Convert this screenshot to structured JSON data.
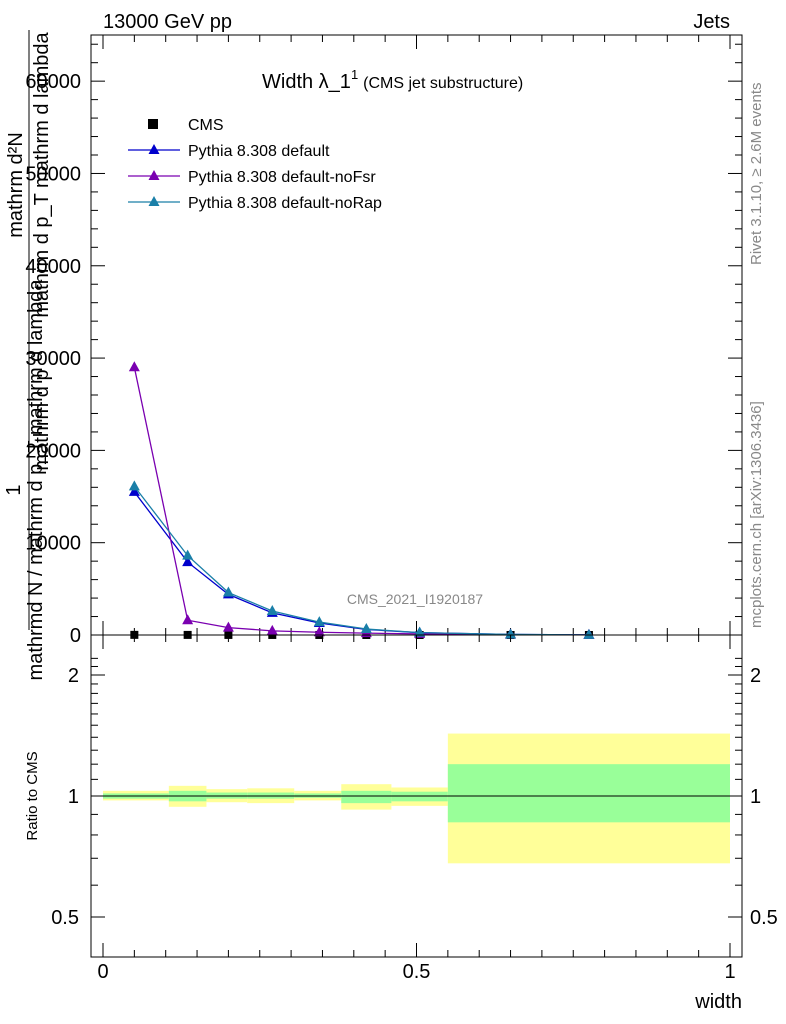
{
  "header": {
    "left": "13000 GeV pp",
    "right": "Jets"
  },
  "side_labels": {
    "rivet": "Rivet 3.1.10, ≥ 2.6M events",
    "mcplots": "mcplots.cern.ch [arXiv:1306.3436]"
  },
  "chart_data": [
    {
      "type": "line",
      "title": "Width λ_1",
      "title_sup": "1",
      "subtitle": "(CMS jet substructure)",
      "watermark": "CMS_2021_I1920187",
      "ylabel_numerator": "1",
      "ylabel_lines": [
        "mathrm d²N",
        "mathrm d p_T mathrm d lambda",
        "mathrm d N / mathrm d p_T mathrm d lambda"
      ],
      "ylabel_denominator": "mathrmd N / mathrm d p_T mathrm d lambda",
      "ylabel_numerator_top": "mathrm d²N",
      "ylabel_mid": "mathrm d p_T mathrm d lambda",
      "ylabel_lower": "mathrm d p",
      "ylim": [
        0,
        65000
      ],
      "xlim": [
        0,
        1
      ],
      "yticks": [
        0,
        10000,
        20000,
        30000,
        40000,
        50000,
        60000
      ],
      "ytick_labels": [
        "0",
        "10000",
        "20000",
        "30000",
        "40000",
        "50000",
        "60000"
      ],
      "legend_position": "top-left",
      "x": [
        0.05,
        0.135,
        0.2,
        0.27,
        0.345,
        0.42,
        0.505,
        0.65,
        0.775
      ],
      "series": [
        {
          "name": "CMS",
          "color": "#000000",
          "marker": "square",
          "values": [
            15,
            10,
            8,
            5,
            3,
            2,
            1,
            0.5,
            0.3
          ]
        },
        {
          "name": "Pythia 8.308 default",
          "color": "#0000cc",
          "marker": "triangle",
          "values": [
            15500,
            7900,
            4400,
            2400,
            1300,
            600,
            250,
            60,
            15
          ]
        },
        {
          "name": "Pythia 8.308 default-noFsr",
          "color": "#7a00b0",
          "marker": "triangle",
          "values": [
            29000,
            1600,
            800,
            450,
            300,
            200,
            120,
            40,
            10
          ]
        },
        {
          "name": "Pythia 8.308 default-noRap",
          "color": "#1a7fa8",
          "marker": "triangle",
          "values": [
            16100,
            8600,
            4600,
            2600,
            1400,
            650,
            260,
            60,
            15
          ]
        }
      ]
    },
    {
      "type": "area",
      "ylabel": "Ratio to CMS",
      "xlabel": "width",
      "ylim": [
        0.4,
        2.3
      ],
      "log_y": true,
      "xlim": [
        0,
        1
      ],
      "xticks": [
        0,
        0.5,
        1
      ],
      "xtick_labels": [
        "0",
        "0.5",
        "1"
      ],
      "yticks": [
        0.5,
        1,
        2
      ],
      "ytick_labels": [
        "0.5",
        "1",
        "2"
      ],
      "green_color": "#99ff99",
      "yellow_color": "#ffff99",
      "bins": [
        {
          "x0": 0.0,
          "x1": 0.105,
          "green": [
            0.985,
            1.015
          ],
          "yellow": [
            0.975,
            1.03
          ]
        },
        {
          "x0": 0.105,
          "x1": 0.165,
          "green": [
            0.97,
            1.03
          ],
          "yellow": [
            0.94,
            1.06
          ]
        },
        {
          "x0": 0.165,
          "x1": 0.23,
          "green": [
            0.985,
            1.02
          ],
          "yellow": [
            0.965,
            1.04
          ]
        },
        {
          "x0": 0.23,
          "x1": 0.305,
          "green": [
            0.985,
            1.02
          ],
          "yellow": [
            0.96,
            1.045
          ]
        },
        {
          "x0": 0.305,
          "x1": 0.38,
          "green": [
            0.99,
            1.015
          ],
          "yellow": [
            0.975,
            1.03
          ]
        },
        {
          "x0": 0.38,
          "x1": 0.46,
          "green": [
            0.96,
            1.03
          ],
          "yellow": [
            0.925,
            1.07
          ]
        },
        {
          "x0": 0.46,
          "x1": 0.55,
          "green": [
            0.97,
            1.025
          ],
          "yellow": [
            0.945,
            1.05
          ]
        },
        {
          "x0": 0.55,
          "x1": 1.0,
          "green": [
            0.86,
            1.2
          ],
          "yellow": [
            0.68,
            1.43
          ]
        }
      ]
    }
  ]
}
